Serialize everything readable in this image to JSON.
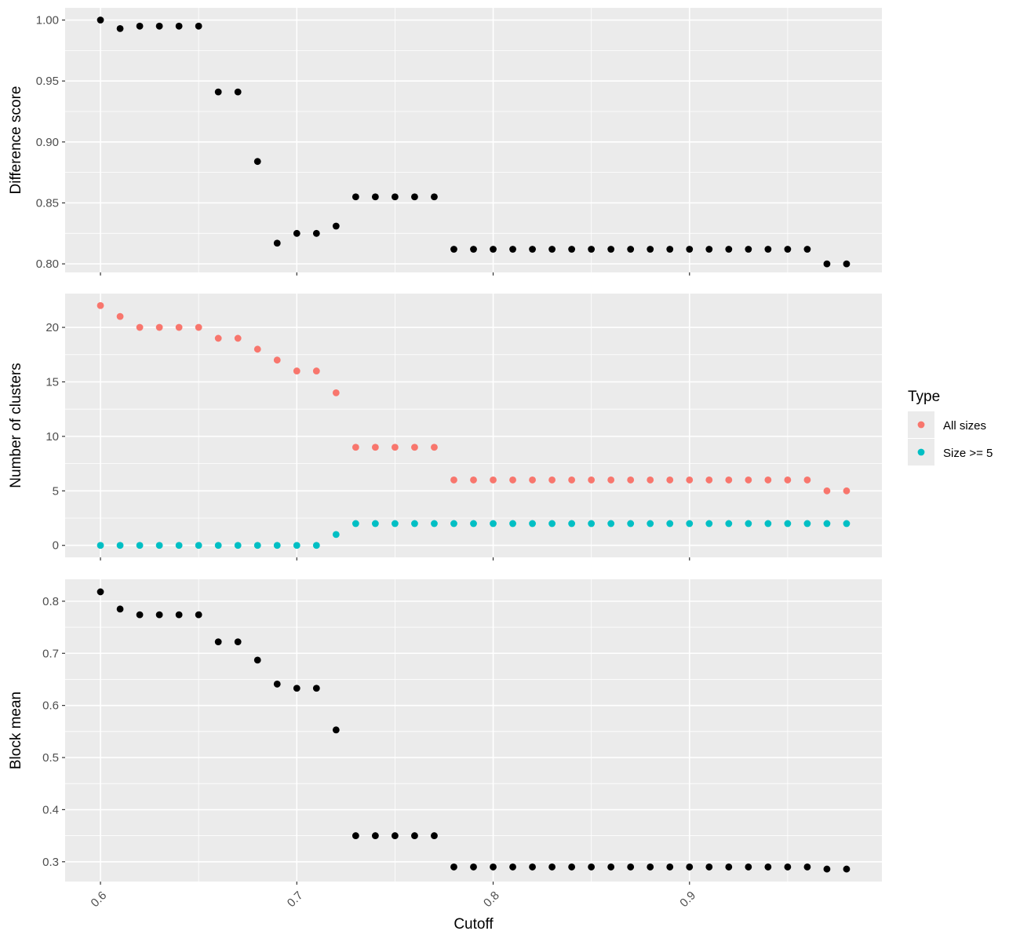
{
  "chart_data": [
    {
      "type": "scatter",
      "ylabel": "Difference score",
      "ylim": [
        0.793,
        1.01
      ],
      "yticks": [
        0.8,
        0.85,
        0.9,
        0.95,
        1.0
      ],
      "yticklabels": [
        "0.80",
        "0.85",
        "0.90",
        "0.95",
        "1.00"
      ],
      "xlim": [
        0.582,
        0.998
      ],
      "series": [
        {
          "color": "#000000",
          "x": [
            0.6,
            0.61,
            0.62,
            0.63,
            0.64,
            0.65,
            0.66,
            0.67,
            0.68,
            0.69,
            0.7,
            0.71,
            0.72,
            0.73,
            0.74,
            0.75,
            0.76,
            0.77,
            0.78,
            0.79,
            0.8,
            0.81,
            0.82,
            0.83,
            0.84,
            0.85,
            0.86,
            0.87,
            0.88,
            0.89,
            0.9,
            0.91,
            0.92,
            0.93,
            0.94,
            0.95,
            0.96,
            0.97,
            0.98
          ],
          "y": [
            1.0,
            0.993,
            0.995,
            0.995,
            0.995,
            0.995,
            0.941,
            0.941,
            0.884,
            0.817,
            0.825,
            0.825,
            0.831,
            0.855,
            0.855,
            0.855,
            0.855,
            0.855,
            0.812,
            0.812,
            0.812,
            0.812,
            0.812,
            0.812,
            0.812,
            0.812,
            0.812,
            0.812,
            0.812,
            0.812,
            0.812,
            0.812,
            0.812,
            0.812,
            0.812,
            0.812,
            0.812,
            0.8,
            0.8
          ]
        }
      ]
    },
    {
      "type": "scatter",
      "ylabel": "Number of clusters",
      "ylim": [
        -1.1,
        23.1
      ],
      "yticks": [
        0,
        5,
        10,
        15,
        20
      ],
      "yticklabels": [
        "0",
        "5",
        "10",
        "15",
        "20"
      ],
      "xlim": [
        0.582,
        0.998
      ],
      "legend": {
        "title": "Type",
        "position": "right",
        "entries": [
          "All sizes",
          "Size >= 5"
        ]
      },
      "series": [
        {
          "name": "All sizes",
          "color": "#F8766D",
          "x": [
            0.6,
            0.61,
            0.62,
            0.63,
            0.64,
            0.65,
            0.66,
            0.67,
            0.68,
            0.69,
            0.7,
            0.71,
            0.72,
            0.73,
            0.74,
            0.75,
            0.76,
            0.77,
            0.78,
            0.79,
            0.8,
            0.81,
            0.82,
            0.83,
            0.84,
            0.85,
            0.86,
            0.87,
            0.88,
            0.89,
            0.9,
            0.91,
            0.92,
            0.93,
            0.94,
            0.95,
            0.96,
            0.97,
            0.98
          ],
          "y": [
            22,
            21,
            20,
            20,
            20,
            20,
            19,
            19,
            18,
            17,
            16,
            16,
            14,
            9,
            9,
            9,
            9,
            9,
            6,
            6,
            6,
            6,
            6,
            6,
            6,
            6,
            6,
            6,
            6,
            6,
            6,
            6,
            6,
            6,
            6,
            6,
            6,
            5,
            5
          ]
        },
        {
          "name": "Size >= 5",
          "color": "#00BFC4",
          "x": [
            0.6,
            0.61,
            0.62,
            0.63,
            0.64,
            0.65,
            0.66,
            0.67,
            0.68,
            0.69,
            0.7,
            0.71,
            0.72,
            0.73,
            0.74,
            0.75,
            0.76,
            0.77,
            0.78,
            0.79,
            0.8,
            0.81,
            0.82,
            0.83,
            0.84,
            0.85,
            0.86,
            0.87,
            0.88,
            0.89,
            0.9,
            0.91,
            0.92,
            0.93,
            0.94,
            0.95,
            0.96,
            0.97,
            0.98
          ],
          "y": [
            0,
            0,
            0,
            0,
            0,
            0,
            0,
            0,
            0,
            0,
            0,
            0,
            1,
            2,
            2,
            2,
            2,
            2,
            2,
            2,
            2,
            2,
            2,
            2,
            2,
            2,
            2,
            2,
            2,
            2,
            2,
            2,
            2,
            2,
            2,
            2,
            2,
            2,
            2
          ]
        }
      ]
    },
    {
      "type": "scatter",
      "ylabel": "Block mean",
      "xlabel": "Cutoff",
      "ylim": [
        0.262,
        0.842
      ],
      "yticks": [
        0.3,
        0.4,
        0.5,
        0.6,
        0.7,
        0.8
      ],
      "yticklabels": [
        "0.3",
        "0.4",
        "0.5",
        "0.6",
        "0.7",
        "0.8"
      ],
      "xlim": [
        0.582,
        0.998
      ],
      "xticks": [
        0.6,
        0.7,
        0.8,
        0.9
      ],
      "xticklabels": [
        "0.6",
        "0.7",
        "0.8",
        "0.9"
      ],
      "series": [
        {
          "color": "#000000",
          "x": [
            0.6,
            0.61,
            0.62,
            0.63,
            0.64,
            0.65,
            0.66,
            0.67,
            0.68,
            0.69,
            0.7,
            0.71,
            0.72,
            0.73,
            0.74,
            0.75,
            0.76,
            0.77,
            0.78,
            0.79,
            0.8,
            0.81,
            0.82,
            0.83,
            0.84,
            0.85,
            0.86,
            0.87,
            0.88,
            0.89,
            0.9,
            0.91,
            0.92,
            0.93,
            0.94,
            0.95,
            0.96,
            0.97,
            0.98
          ],
          "y": [
            0.818,
            0.785,
            0.774,
            0.774,
            0.774,
            0.774,
            0.722,
            0.722,
            0.687,
            0.641,
            0.633,
            0.633,
            0.553,
            0.35,
            0.35,
            0.35,
            0.35,
            0.35,
            0.29,
            0.29,
            0.29,
            0.29,
            0.29,
            0.29,
            0.29,
            0.29,
            0.29,
            0.29,
            0.29,
            0.29,
            0.29,
            0.29,
            0.29,
            0.29,
            0.29,
            0.29,
            0.29,
            0.286,
            0.286
          ]
        }
      ]
    }
  ]
}
